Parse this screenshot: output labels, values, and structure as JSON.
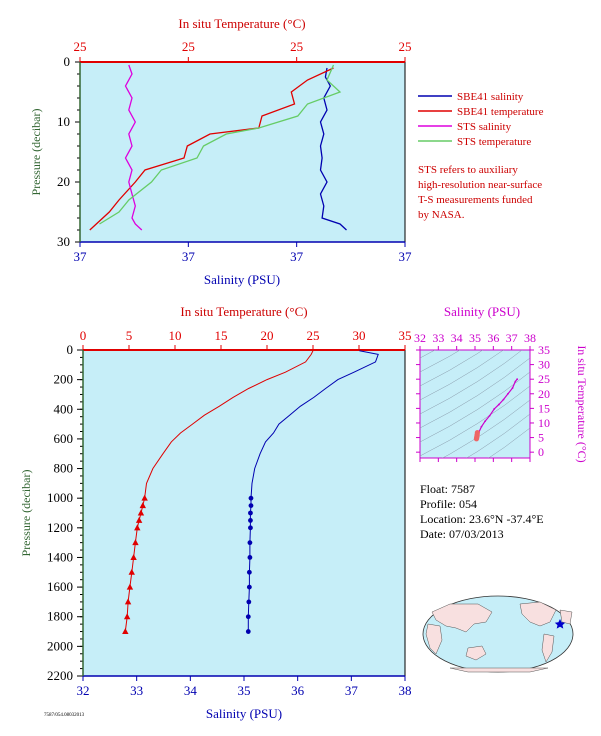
{
  "colors": {
    "background": "#ffffff",
    "plot_bg": "#c6eef8",
    "temperature": "#e00000",
    "salinity": "#0000b0",
    "sts_salinity": "#dd00dd",
    "sts_temperature": "#66cc66",
    "ts_diagram": "#cc00cc",
    "pressure_axis": "#336633",
    "legend_text": "#cc0000",
    "info_text": "#000000"
  },
  "top_panel": {
    "temp_title": "In situ Temperature (°C)",
    "sal_title": "Salinity (PSU)",
    "ylabel": "Pressure (decibar)",
    "legend": {
      "sbe_salinity": "SBE41 salinity",
      "sbe_temperature": "SBE41 temperature",
      "sts_salinity": "STS salinity",
      "sts_temperature": "STS temperature"
    },
    "note": [
      "STS refers to auxiliary",
      "high-resolution near-surface",
      "T-S measurements funded",
      "by NASA."
    ]
  },
  "main_panel": {
    "temp_title": "In situ Temperature (°C)",
    "sal_title": "Salinity (PSU)",
    "ylabel": "Pressure (decibar)"
  },
  "ts_panel": {
    "sal_title": "Salinity (PSU)",
    "temp_title": "In situ Temperature (°C)"
  },
  "info": {
    "float": "Float:  7587",
    "profile": "Profile:  054",
    "location": "Location:  23.6°N  -37.4°E",
    "date": "Date:  07/03/2013"
  },
  "footer": "7587/054.08032013",
  "chart_data": [
    {
      "type": "line",
      "id": "top",
      "yaxis": {
        "label": "Pressure (decibar)",
        "lim": [
          30,
          0
        ],
        "ticks": [
          0,
          10,
          20,
          30
        ]
      },
      "temp_axis": {
        "label": "In situ Temperature (°C)",
        "ticks": [
          "25",
          "25",
          "25",
          "25"
        ]
      },
      "sal_axis": {
        "label": "Salinity (PSU)",
        "ticks": [
          "37",
          "37",
          "37",
          "37"
        ]
      },
      "series": [
        {
          "name": "SBE41 salinity",
          "color": "#0000b0",
          "x_frac": [
            0.76,
            0.755,
            0.77,
            0.75,
            0.76,
            0.74,
            0.75,
            0.74,
            0.745,
            0.74,
            0.76,
            0.74,
            0.75,
            0.745,
            0.8,
            0.82
          ],
          "y": [
            1,
            2.5,
            4,
            6,
            8,
            10,
            12,
            14,
            16,
            18,
            20,
            22,
            24,
            26,
            27,
            28
          ]
        },
        {
          "name": "SBE41 temperature",
          "color": "#e00000",
          "x_frac": [
            0.78,
            0.7,
            0.65,
            0.66,
            0.56,
            0.55,
            0.4,
            0.33,
            0.32,
            0.2,
            0.17,
            0.12,
            0.09,
            0.03
          ],
          "y": [
            1,
            3,
            5,
            7,
            9,
            11,
            12,
            14,
            16,
            18,
            20,
            23,
            25,
            28
          ]
        },
        {
          "name": "STS salinity",
          "color": "#dd00dd",
          "x_frac": [
            0.15,
            0.16,
            0.14,
            0.16,
            0.15,
            0.17,
            0.15,
            0.16,
            0.14,
            0.16,
            0.15,
            0.16,
            0.17,
            0.16,
            0.17,
            0.19
          ],
          "y": [
            0.5,
            2,
            4,
            6,
            8,
            10,
            12,
            14,
            16,
            18,
            20,
            22,
            24,
            26,
            27,
            28
          ]
        },
        {
          "name": "STS temperature",
          "color": "#66cc66",
          "x_frac": [
            0.78,
            0.76,
            0.8,
            0.7,
            0.67,
            0.55,
            0.45,
            0.38,
            0.36,
            0.25,
            0.22,
            0.15,
            0.12,
            0.06
          ],
          "y": [
            0.5,
            3,
            5,
            7,
            9,
            11,
            12,
            14,
            16,
            18,
            20,
            23,
            25,
            27
          ]
        }
      ]
    },
    {
      "type": "line",
      "id": "main",
      "yaxis": {
        "label": "Pressure (decibar)",
        "lim": [
          2200,
          0
        ],
        "ticks": [
          0,
          200,
          400,
          600,
          800,
          1000,
          1200,
          1400,
          1600,
          1800,
          2000,
          2200
        ]
      },
      "temp_axis": {
        "label": "In situ Temperature (°C)",
        "lim": [
          0,
          35
        ],
        "ticks": [
          0,
          5,
          10,
          15,
          20,
          25,
          30,
          35
        ]
      },
      "sal_axis": {
        "label": "Salinity (PSU)",
        "lim": [
          32,
          38
        ],
        "ticks": [
          32,
          33,
          34,
          35,
          36,
          37,
          38
        ]
      },
      "series": [
        {
          "name": "",
          "kind": "temperature",
          "color": "#e00000",
          "x": [
            25.0,
            24.8,
            24.2,
            22.0,
            20.0,
            18.0,
            16.3,
            14.8,
            13.2,
            11.9,
            10.6,
            9.6,
            8.7,
            7.6,
            6.9,
            6.7,
            6.5,
            6.3,
            6.1,
            5.9,
            5.7,
            5.5,
            5.3,
            5.1,
            4.9,
            4.8,
            4.6
          ],
          "y": [
            5,
            30,
            80,
            150,
            200,
            260,
            320,
            380,
            440,
            500,
            560,
            620,
            700,
            800,
            900,
            1000,
            1050,
            1100,
            1150,
            1200,
            1300,
            1400,
            1500,
            1600,
            1700,
            1800,
            1900
          ],
          "markers_from": 1000
        },
        {
          "name": "",
          "kind": "salinity",
          "color": "#0000b0",
          "x": [
            37.15,
            37.5,
            37.45,
            37.05,
            36.75,
            36.52,
            36.3,
            36.05,
            35.85,
            35.65,
            35.55,
            35.4,
            35.3,
            35.2,
            35.15,
            35.13,
            35.13,
            35.12,
            35.12,
            35.12,
            35.11,
            35.11,
            35.1,
            35.1,
            35.09,
            35.08,
            35.08
          ],
          "y": [
            5,
            30,
            80,
            150,
            200,
            260,
            320,
            380,
            440,
            500,
            560,
            620,
            700,
            800,
            900,
            1000,
            1050,
            1100,
            1150,
            1200,
            1300,
            1400,
            1500,
            1600,
            1700,
            1800,
            1900
          ],
          "markers_from": 1000
        }
      ]
    },
    {
      "type": "scatter",
      "id": "ts",
      "xaxis": {
        "label": "Salinity (PSU)",
        "lim": [
          32,
          38
        ],
        "ticks": [
          32,
          33,
          34,
          35,
          36,
          37,
          38
        ]
      },
      "yaxis": {
        "label": "In situ Temperature (°C)",
        "lim": [
          -2,
          35
        ],
        "ticks": [
          0,
          5,
          10,
          15,
          20,
          25,
          30,
          35
        ]
      },
      "series": [
        {
          "name": "",
          "color": "#cc00cc",
          "x": [
            35.1,
            35.13,
            35.2,
            35.35,
            35.55,
            35.8,
            36.05,
            36.3,
            36.55,
            36.8,
            37.05,
            37.2,
            37.3
          ],
          "y": [
            4.6,
            5.5,
            6.7,
            8.7,
            10.6,
            12.5,
            14.8,
            16.3,
            18.0,
            20.0,
            22.0,
            24.2,
            25.0
          ]
        },
        {
          "name": "",
          "color": "#ee6666",
          "x": [
            35.08,
            35.09,
            35.1,
            35.11,
            35.12,
            35.13
          ],
          "y": [
            4.6,
            4.9,
            5.3,
            5.7,
            6.1,
            6.7
          ]
        }
      ]
    }
  ]
}
